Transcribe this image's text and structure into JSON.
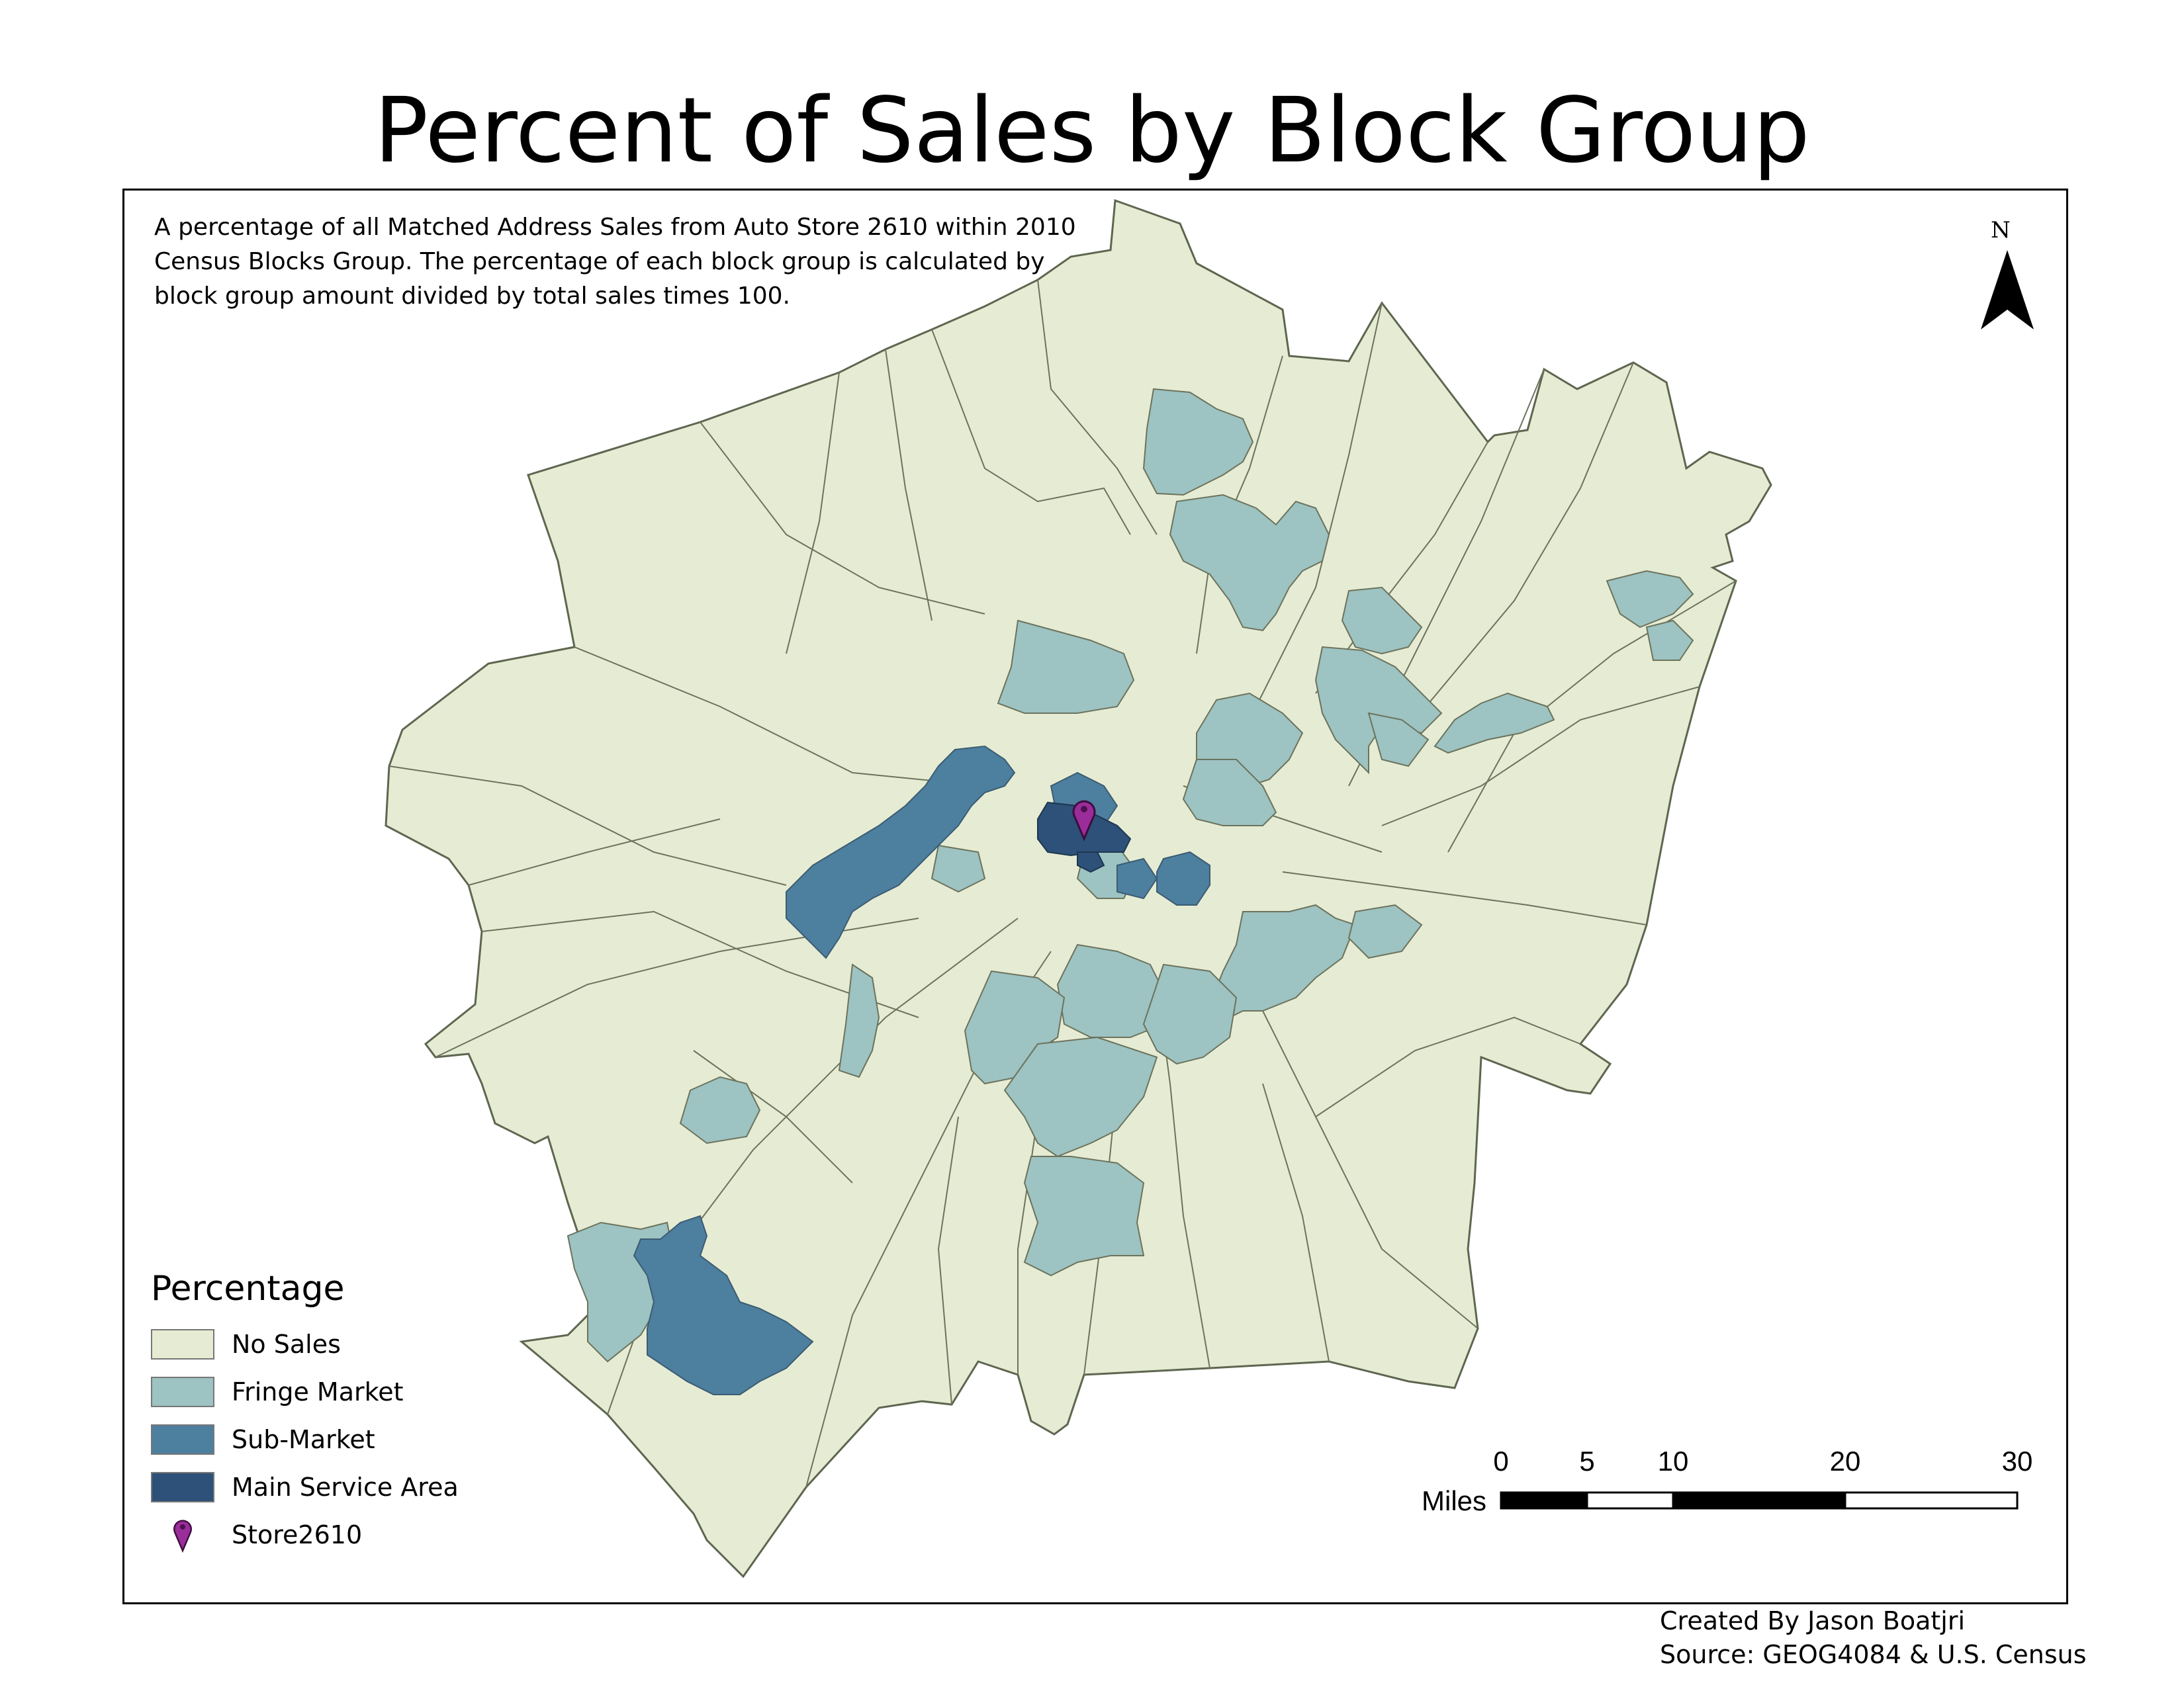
{
  "title": "Percent of Sales by Block Group",
  "description": "A percentage of all Matched Address Sales from Auto Store 2610 within 2010 Census Blocks Group. The percentage of each block group is calculated by block group amount divided by total sales times 100.",
  "north_arrow": {
    "label": "N",
    "icon": "north-arrow-icon"
  },
  "legend": {
    "title": "Percentage",
    "items": [
      {
        "label": "No Sales",
        "color": "#e6ecd3"
      },
      {
        "label": "Fringe Market",
        "color": "#9dc3c2"
      },
      {
        "label": "Sub-Market",
        "color": "#4d7f9f"
      },
      {
        "label": "Main Service Area",
        "color": "#2d5178"
      },
      {
        "label": "Store2610",
        "color": "#9b2d9b",
        "icon": "map-pin-icon"
      }
    ]
  },
  "scale_bar": {
    "unit": "Miles",
    "ticks": [
      "0",
      "5",
      "10",
      "20",
      "30"
    ]
  },
  "credits": {
    "created_by": "Created By Jason Boatjri",
    "source": "Source: GEOG4084 & U.S. Census"
  }
}
